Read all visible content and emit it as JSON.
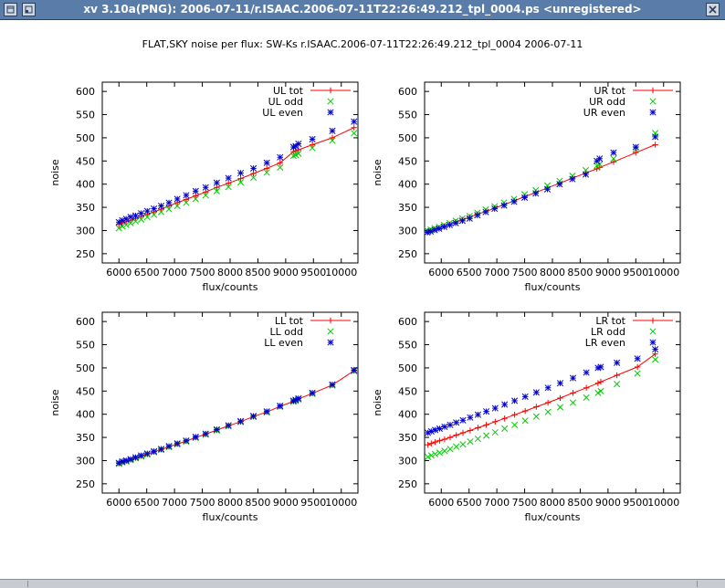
{
  "window": {
    "title": "xv 3.10a(PNG): 2006-07-11/r.ISAAC.2006-07-11T22:26:49.212_tpl_0004.ps <unregistered>",
    "menu_icon": "window-menu-icon",
    "iconify_icon": "iconify-icon",
    "close_icon": "close-icon"
  },
  "figure_title": "FLAT,SKY noise per flux: SW-Ks r.ISAAC.2006-07-11T22:26:49.212_tpl_0004 2006-07-11",
  "colors": {
    "tot": "#ff0000",
    "odd": "#00cc00",
    "even": "#0000cc"
  },
  "chart_data": [
    {
      "type": "scatter",
      "quadrant": "UL",
      "xlabel": "flux/counts",
      "ylabel": "noise",
      "xlim": [
        5700,
        10300
      ],
      "ylim": [
        230,
        620
      ],
      "xticks": [
        6000,
        6500,
        7000,
        7500,
        8000,
        8500,
        9000,
        9500,
        10000
      ],
      "yticks": [
        250,
        300,
        350,
        400,
        450,
        500,
        550,
        600
      ],
      "xticklabels": [
        "6000",
        "6500",
        "7000",
        "7500",
        "8000",
        "8500",
        "9000",
        "9500",
        "10000"
      ],
      "legend_placement": "top-right",
      "x": [
        6000,
        6060,
        6130,
        6210,
        6300,
        6400,
        6510,
        6630,
        6760,
        6900,
        7050,
        7210,
        7380,
        7560,
        7760,
        7970,
        8190,
        8420,
        8660,
        8900,
        9140,
        9180,
        9230,
        9480,
        9840,
        10230
      ],
      "series": [
        {
          "name": "UL tot",
          "marker": "+",
          "line": true,
          "values": [
            313,
            316,
            319,
            322,
            326,
            330,
            335,
            340,
            346,
            353,
            360,
            367,
            375,
            383,
            393,
            402,
            412,
            423,
            434,
            446,
            470,
            472,
            474,
            485,
            500,
            522
          ]
        },
        {
          "name": "UL odd",
          "marker": "x",
          "line": false,
          "values": [
            305,
            309,
            312,
            316,
            320,
            324,
            329,
            334,
            340,
            346,
            353,
            360,
            368,
            376,
            385,
            394,
            404,
            414,
            425,
            436,
            461,
            463,
            466,
            478,
            494,
            510
          ]
        },
        {
          "name": "UL even",
          "marker": "*",
          "line": false,
          "values": [
            318,
            322,
            325,
            329,
            332,
            337,
            342,
            347,
            353,
            360,
            368,
            376,
            385,
            393,
            403,
            413,
            424,
            434,
            446,
            458,
            480,
            482,
            487,
            497,
            515,
            535
          ]
        }
      ]
    },
    {
      "type": "scatter",
      "quadrant": "UR",
      "xlabel": "flux/counts",
      "ylabel": "noise",
      "xlim": [
        5700,
        10300
      ],
      "ylim": [
        230,
        620
      ],
      "xticks": [
        6000,
        6500,
        7000,
        7500,
        8000,
        8500,
        9000,
        9500,
        10000
      ],
      "yticks": [
        250,
        300,
        350,
        400,
        450,
        500,
        550,
        600
      ],
      "xticklabels": [
        "6000",
        "6500",
        "7000",
        "7500",
        "8000",
        "8500",
        "9000",
        "9500",
        "10000"
      ],
      "legend_placement": "top-right",
      "x": [
        5750,
        5810,
        5880,
        5960,
        6050,
        6150,
        6260,
        6380,
        6510,
        6650,
        6800,
        6960,
        7130,
        7310,
        7500,
        7700,
        7910,
        8130,
        8360,
        8600,
        8800,
        8850,
        9100,
        9500,
        9850
      ],
      "series": [
        {
          "name": "UR tot",
          "marker": "+",
          "line": true,
          "values": [
            297,
            299,
            302,
            305,
            309,
            313,
            318,
            323,
            329,
            335,
            341,
            348,
            356,
            364,
            373,
            382,
            392,
            402,
            413,
            424,
            433,
            436,
            448,
            468,
            485
          ]
        },
        {
          "name": "UR odd",
          "marker": "x",
          "line": false,
          "values": [
            300,
            302,
            305,
            308,
            312,
            316,
            321,
            326,
            331,
            338,
            345,
            352,
            360,
            368,
            378,
            387,
            397,
            407,
            418,
            430,
            440,
            443,
            455,
            475,
            510
          ]
        },
        {
          "name": "UR even",
          "marker": "*",
          "line": false,
          "values": [
            296,
            298,
            301,
            304,
            308,
            312,
            316,
            321,
            326,
            333,
            340,
            347,
            354,
            362,
            371,
            380,
            389,
            400,
            411,
            421,
            450,
            455,
            468,
            480,
            502
          ]
        }
      ]
    },
    {
      "type": "scatter",
      "quadrant": "LL",
      "xlabel": "flux/counts",
      "ylabel": "noise",
      "xlim": [
        5700,
        10300
      ],
      "ylim": [
        230,
        620
      ],
      "xticks": [
        6000,
        6500,
        7000,
        7500,
        8000,
        8500,
        9000,
        9500,
        10000
      ],
      "yticks": [
        250,
        300,
        350,
        400,
        450,
        500,
        550,
        600
      ],
      "xticklabels": [
        "6000",
        "6500",
        "7000",
        "7500",
        "8000",
        "8500",
        "9000",
        "9500",
        "10000"
      ],
      "legend_placement": "top-right",
      "x": [
        6000,
        6060,
        6130,
        6210,
        6300,
        6400,
        6510,
        6630,
        6760,
        6900,
        7050,
        7210,
        7380,
        7560,
        7760,
        7970,
        8190,
        8420,
        8660,
        8900,
        9140,
        9180,
        9230,
        9480,
        9840,
        10230
      ],
      "series": [
        {
          "name": "LL tot",
          "marker": "+",
          "line": true,
          "values": [
            294,
            297,
            299,
            302,
            306,
            310,
            314,
            319,
            324,
            330,
            336,
            342,
            350,
            357,
            366,
            375,
            384,
            395,
            405,
            417,
            428,
            430,
            433,
            445,
            463,
            494
          ]
        },
        {
          "name": "LL odd",
          "marker": "x",
          "line": false,
          "values": [
            293,
            296,
            298,
            301,
            305,
            309,
            313,
            318,
            323,
            329,
            335,
            341,
            349,
            356,
            365,
            374,
            383,
            394,
            404,
            416,
            427,
            429,
            432,
            444,
            462,
            493
          ]
        },
        {
          "name": "LL even",
          "marker": "*",
          "line": false,
          "values": [
            295,
            298,
            300,
            303,
            307,
            311,
            315,
            320,
            325,
            331,
            337,
            343,
            351,
            358,
            367,
            376,
            385,
            396,
            406,
            418,
            429,
            431,
            434,
            446,
            464,
            495
          ]
        }
      ]
    },
    {
      "type": "scatter",
      "quadrant": "LR",
      "xlabel": "flux/counts",
      "ylabel": "noise",
      "xlim": [
        5700,
        10300
      ],
      "ylim": [
        230,
        620
      ],
      "xticks": [
        6000,
        6500,
        7000,
        7500,
        8000,
        8500,
        9000,
        9500,
        10000
      ],
      "yticks": [
        250,
        300,
        350,
        400,
        450,
        500,
        550,
        600
      ],
      "xticklabels": [
        "6000",
        "6500",
        "7000",
        "7500",
        "8000",
        "8500",
        "9000",
        "9500",
        "10000"
      ],
      "legend_placement": "top-right",
      "x": [
        5760,
        5820,
        5890,
        5970,
        6060,
        6160,
        6270,
        6390,
        6520,
        6660,
        6810,
        6970,
        7140,
        7320,
        7510,
        7710,
        7920,
        8140,
        8370,
        8610,
        8820,
        8870,
        9160,
        9530,
        9850
      ],
      "series": [
        {
          "name": "LR tot",
          "marker": "+",
          "line": true,
          "values": [
            334,
            337,
            340,
            343,
            346,
            350,
            355,
            360,
            365,
            371,
            377,
            384,
            391,
            399,
            407,
            416,
            425,
            435,
            446,
            457,
            467,
            470,
            484,
            502,
            530
          ]
        },
        {
          "name": "LR odd",
          "marker": "x",
          "line": false,
          "values": [
            308,
            311,
            314,
            317,
            321,
            325,
            330,
            335,
            341,
            347,
            354,
            361,
            369,
            377,
            386,
            395,
            405,
            415,
            425,
            436,
            446,
            450,
            465,
            488,
            518
          ]
        },
        {
          "name": "LR even",
          "marker": "*",
          "line": false,
          "values": [
            360,
            363,
            366,
            369,
            373,
            377,
            382,
            387,
            393,
            399,
            406,
            413,
            421,
            429,
            438,
            447,
            457,
            467,
            478,
            490,
            500,
            502,
            511,
            520,
            540
          ]
        }
      ]
    }
  ]
}
